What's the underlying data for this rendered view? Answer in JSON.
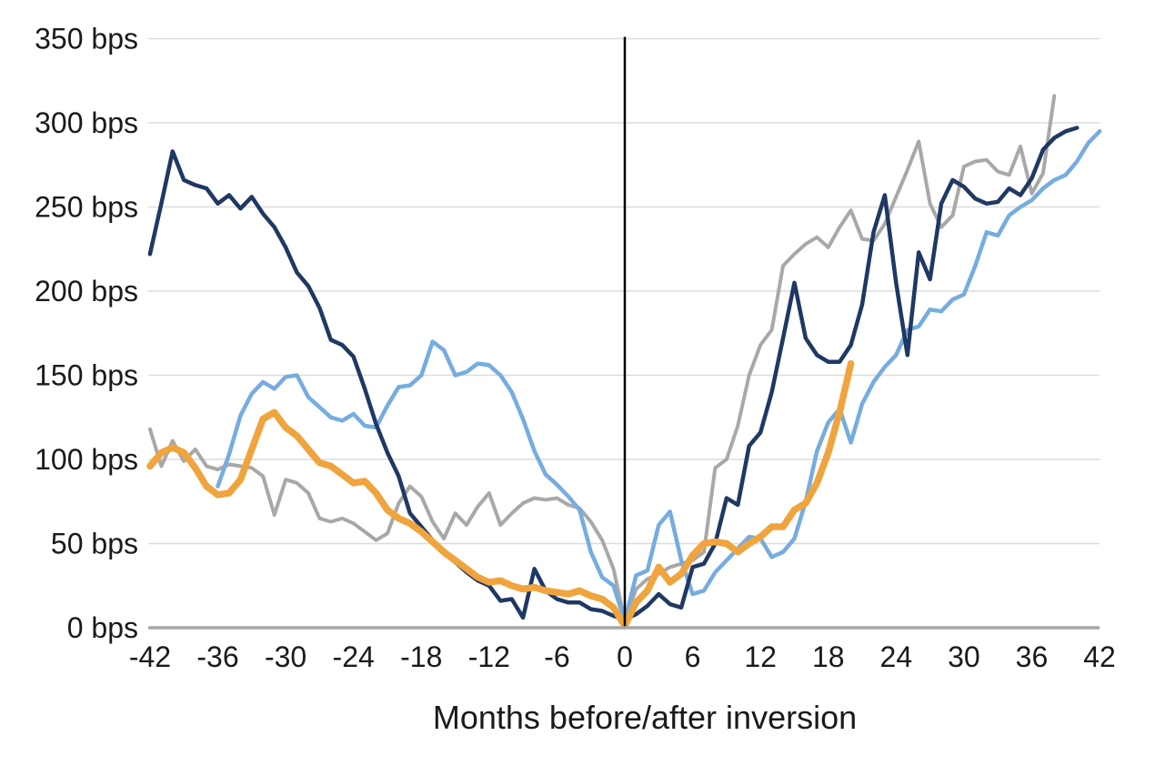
{
  "chart_data": {
    "type": "line",
    "title": "",
    "xlabel": "Months before/after inversion",
    "ylabel": "bps",
    "xlim": [
      -42,
      42
    ],
    "ylim": [
      0,
      350
    ],
    "grid": "horizontal",
    "legend": "none",
    "inversion_line_x": 0,
    "x_ticks": [
      -42,
      -36,
      -30,
      -24,
      -18,
      -12,
      -6,
      0,
      6,
      12,
      18,
      24,
      30,
      36,
      42
    ],
    "x_tick_labels": [
      "-42",
      "-36",
      "-30",
      "-24",
      "-18",
      "-12",
      "-6",
      "0",
      "6",
      "12",
      "18",
      "24",
      "30",
      "36",
      "42"
    ],
    "y_ticks": [
      0,
      50,
      100,
      150,
      200,
      250,
      300,
      350
    ],
    "y_tick_labels": [
      "0 bps",
      "50 bps",
      "100 bps",
      "150 bps",
      "200 bps",
      "250 bps",
      "300 bps",
      "350 bps"
    ],
    "colors": {
      "grid": "#dcdcdc",
      "baseline_axis": "#a6a6a6",
      "inversion_line": "#000000",
      "text": "#1a1a1a",
      "navy": "#1f3864",
      "light_blue": "#76acdf",
      "gray": "#a8a8a8",
      "orange": "#f0a43e"
    },
    "series": [
      {
        "name": "gray-episode",
        "color": "#a8a8a8",
        "stroke_width": 4,
        "start_month": -42,
        "end_month": 38,
        "values": [
          118,
          96,
          111,
          99,
          106,
          96,
          94,
          97,
          96,
          95,
          90,
          67,
          88,
          86,
          80,
          65,
          63,
          65,
          62,
          57,
          52,
          56,
          74,
          84,
          78,
          63,
          53,
          68,
          61,
          72,
          80,
          61,
          68,
          74,
          77,
          76,
          77,
          73,
          71,
          63,
          52,
          35,
          4,
          23,
          29,
          32,
          36,
          38,
          40,
          45,
          95,
          100,
          120,
          150,
          168,
          177,
          215,
          222,
          228,
          232,
          226,
          238,
          248,
          231,
          230,
          240,
          256,
          272,
          289,
          252,
          238,
          245,
          274,
          277,
          278,
          271,
          269,
          286,
          258,
          270,
          316
        ]
      },
      {
        "name": "light-blue-episode",
        "color": "#76acdf",
        "stroke_width": 4.5,
        "start_month": -36,
        "end_month": 42,
        "values": [
          84,
          103,
          126,
          139,
          146,
          142,
          149,
          150,
          137,
          131,
          125,
          123,
          127,
          120,
          119,
          132,
          143,
          144,
          150,
          170,
          165,
          150,
          152,
          157,
          156,
          150,
          140,
          124,
          105,
          91,
          85,
          78,
          70,
          45,
          30,
          25,
          4,
          31,
          34,
          61,
          69,
          40,
          20,
          22,
          33,
          40,
          47,
          54,
          53,
          42,
          45,
          53,
          75,
          105,
          122,
          130,
          110,
          133,
          146,
          155,
          162,
          177,
          179,
          189,
          188,
          195,
          198,
          215,
          235,
          233,
          245,
          250,
          254,
          261,
          266,
          269,
          277,
          288,
          295
        ]
      },
      {
        "name": "navy-episode",
        "color": "#1f3864",
        "stroke_width": 4.5,
        "start_month": -42,
        "end_month": 40,
        "values": [
          222,
          252,
          283,
          266,
          263,
          261,
          252,
          257,
          249,
          256,
          246,
          238,
          226,
          211,
          203,
          190,
          171,
          168,
          161,
          142,
          121,
          104,
          90,
          68,
          60,
          52,
          44,
          39,
          33,
          28,
          25,
          16,
          17,
          6,
          35,
          22,
          17,
          15,
          15,
          11,
          10,
          7,
          5,
          8,
          13,
          20,
          14,
          12,
          36,
          38,
          50,
          77,
          73,
          108,
          116,
          140,
          172,
          205,
          172,
          162,
          158,
          158,
          168,
          192,
          235,
          257,
          205,
          162,
          223,
          207,
          252,
          266,
          262,
          255,
          252,
          253,
          261,
          257,
          267,
          284,
          291,
          295,
          297
        ]
      },
      {
        "name": "orange-current-episode",
        "color": "#f0a43e",
        "stroke_width": 7.5,
        "start_month": -42,
        "end_month": 20,
        "values": [
          96,
          104,
          107,
          104,
          95,
          84,
          79,
          80,
          88,
          106,
          124,
          128,
          119,
          114,
          106,
          98,
          96,
          91,
          86,
          87,
          80,
          70,
          65,
          62,
          57,
          51,
          45,
          40,
          35,
          30,
          27,
          28,
          25,
          23,
          24,
          22,
          21,
          20,
          22,
          19,
          17,
          12,
          1,
          15,
          22,
          36,
          27,
          32,
          43,
          50,
          51,
          50,
          45,
          50,
          54,
          60,
          60,
          70,
          74,
          86,
          104,
          128,
          157
        ]
      }
    ]
  }
}
